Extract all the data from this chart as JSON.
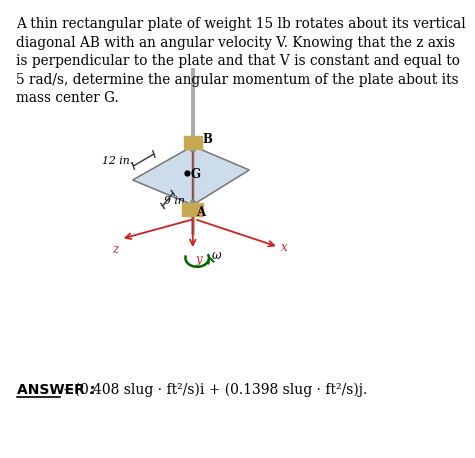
{
  "title_text": "A thin rectangular plate of weight 15 lb rotates about its vertical\ndiagonal AB with an angular velocity V. Knowing that the z axis\nis perpendicular to the plate and that V is constant and equal to\n5 rad/s, determine the angular momentum of the plate about its\nmass center G.",
  "answer_label": "ANSWER :",
  "answer_text": "−(0.408 slug · ft²/s)i + (0.1398 slug · ft²/s)j.",
  "label_12in": "12 in.",
  "label_9in": "9 in.",
  "label_A": "A",
  "label_B": "B",
  "label_G": "G",
  "label_x": "x",
  "label_y": "y",
  "label_z": "z",
  "label_omega": "ω",
  "plate_color": "#c5d8e8",
  "plate_edge_color": "#666666",
  "shaft_color": "#aaaaaa",
  "bracket_color_top": "#c8a850",
  "bracket_color_bot": "#c8a850",
  "bg_color": "#ffffff",
  "axis_color_y": "#cc2222",
  "axis_color_xz": "#cc2222",
  "omega_color": "#006600",
  "dim_line_color": "#333333",
  "text_color": "#000000",
  "answer_fontsize": 10.0,
  "title_fontsize": 9.8
}
